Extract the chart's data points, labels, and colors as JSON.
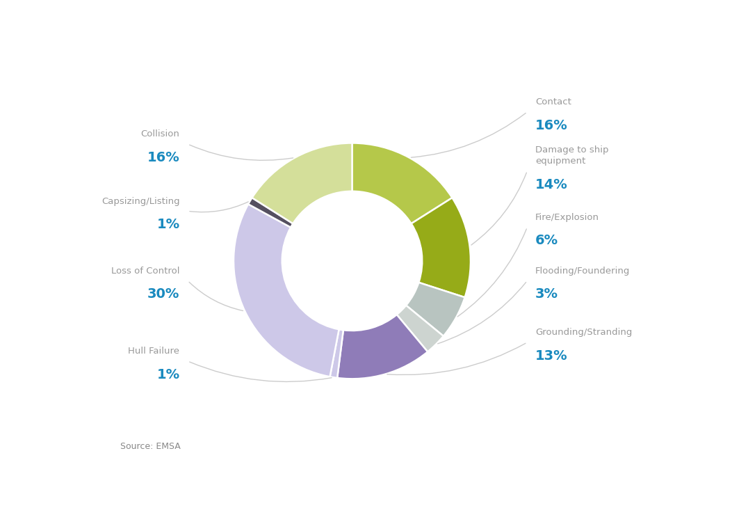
{
  "categories": [
    "Contact",
    "Damage to ship\nequipment",
    "Fire/Explosion",
    "Flooding/Foundering",
    "Grounding/Stranding",
    "Hull Failure",
    "Loss of Control",
    "Capsizing/Listing",
    "Collision"
  ],
  "values": [
    16,
    14,
    6,
    3,
    13,
    1,
    30,
    1,
    16
  ],
  "colors": [
    "#b5c84a",
    "#96ab18",
    "#b8c4c0",
    "#cdd4d0",
    "#8f7cb8",
    "#cdc8e8",
    "#cdc8e8",
    "#555060",
    "#d4df9a"
  ],
  "label_color_category": "#999999",
  "label_color_pct": "#1a8abf",
  "source_text": "Source: EMSA",
  "background_color": "#ffffff"
}
